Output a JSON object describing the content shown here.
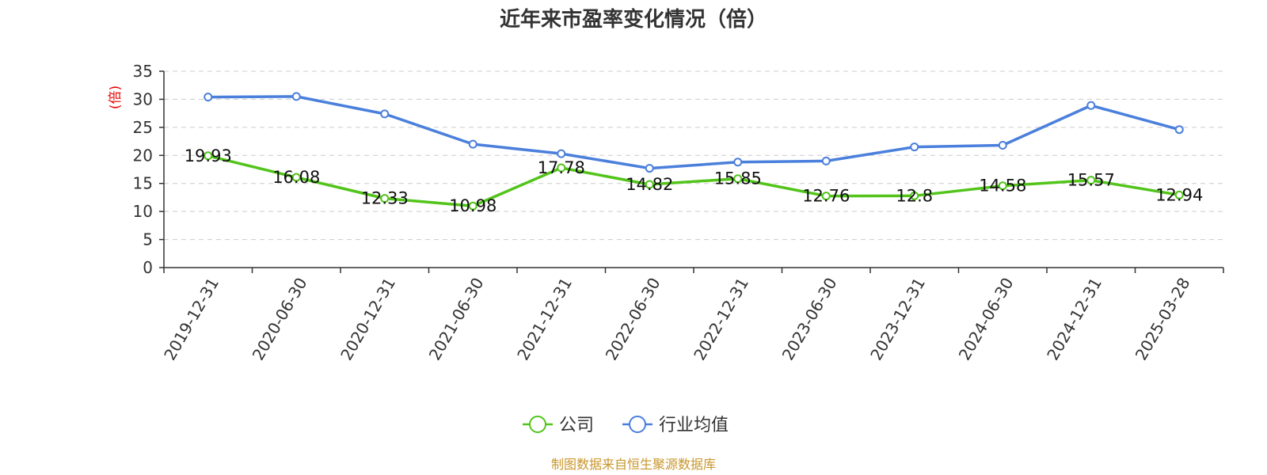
{
  "source_note": "制图数据来自恒生聚源数据库",
  "colors": {
    "company": "#52c41a",
    "industry": "#4a7fdc",
    "ylabel": "#e60000",
    "source": "#c8962b"
  },
  "chart_data": {
    "type": "line",
    "title": "近年来市盈率变化情况（倍）",
    "xlabel": "",
    "ylabel": "(倍)",
    "ylim": [
      0,
      35
    ],
    "yticks": [
      0,
      5,
      10,
      15,
      20,
      25,
      30,
      35
    ],
    "grid": true,
    "legend_position": "bottom-center",
    "categories": [
      "2019-12-31",
      "2020-06-30",
      "2020-12-31",
      "2021-06-30",
      "2021-12-31",
      "2022-06-30",
      "2022-12-31",
      "2023-06-30",
      "2023-12-31",
      "2024-06-30",
      "2024-12-31",
      "2025-03-28"
    ],
    "series": [
      {
        "name": "公司",
        "values": [
          19.93,
          16.08,
          12.33,
          10.98,
          17.78,
          14.82,
          15.85,
          12.76,
          12.8,
          14.58,
          15.57,
          12.94
        ],
        "labels": [
          "19.93",
          "16.08",
          "12.33",
          "10.98",
          "17.78",
          "14.82",
          "15.85",
          "12.76",
          "12.8",
          "14.58",
          "15.57",
          "12.94"
        ]
      },
      {
        "name": "行业均值",
        "values": [
          30.4,
          30.5,
          27.4,
          22.0,
          20.3,
          17.7,
          18.8,
          19.0,
          21.5,
          21.8,
          28.9,
          24.6
        ]
      }
    ]
  }
}
